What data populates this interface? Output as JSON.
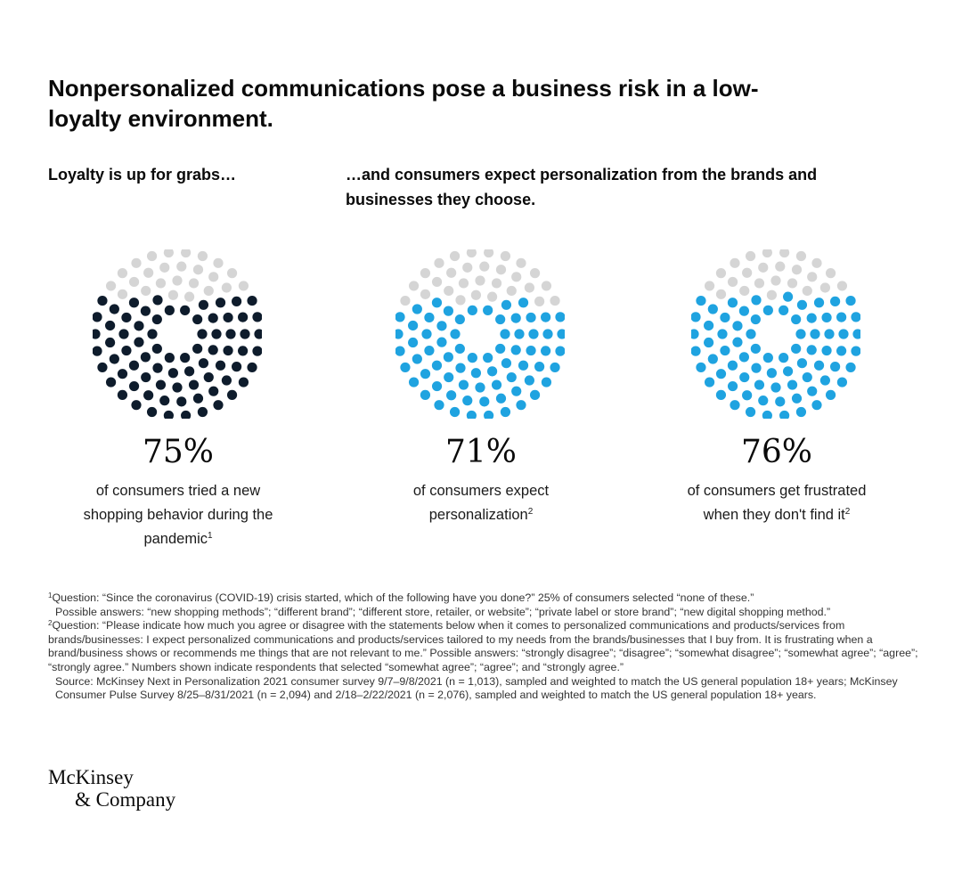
{
  "title": "Nonpersonalized communications pose a business risk in a low-loyalty environment.",
  "subheads": {
    "left": "Loyalty is up for grabs…",
    "right": "…and consumers expect personalization from the brands and businesses they choose."
  },
  "colors": {
    "inactive": "#d5d5d5",
    "navy": "#0e1c2c",
    "blue": "#1fa3e0"
  },
  "chart_data": {
    "type": "dot-proportion",
    "items": [
      {
        "value": 75,
        "label": "75%",
        "caption": "of consumers tried a new shopping behavior during the pandemic",
        "footnote": "1",
        "color": "#0e1c2c"
      },
      {
        "value": 71,
        "label": "71%",
        "caption": "of consumers expect personalization",
        "footnote": "2",
        "color": "#1fa3e0"
      },
      {
        "value": 76,
        "label": "76%",
        "caption": "of consumers get frustrated when they don't find it",
        "footnote": "2",
        "color": "#1fa3e0"
      }
    ]
  },
  "footnotes": {
    "fn1_num": "1",
    "fn1_text": "Question: “Since the coronavirus (COVID-19) crisis started, which of the following have you done?” 25% of consumers selected “none of these.”",
    "fn1_more": "Possible answers: “new shopping methods”; “different brand”; “different store, retailer, or website”; “private label or store brand”; “new digital shopping method.”",
    "fn2_num": "2",
    "fn2_text": "Question: “Please indicate how much you agree or disagree with the statements below when it comes to personalized communications and products/services from brands/businesses: I expect personalized communications and products/services tailored to my needs from the brands/businesses that I buy from. It is frustrating when a brand/business shows or recommends me things that are not relevant to me.” Possible answers: “strongly disagree”; “disagree”; “somewhat disagree”; “somewhat agree”; “agree”; “strongly agree.” Numbers shown indicate respondents that selected “somewhat agree”; “agree”; and “strongly agree.”",
    "source": "Source: McKinsey Next in Personalization 2021 consumer survey 9/7–9/8/2021 (n = 1,013), sampled and weighted to match the US general population 18+ years; McKinsey Consumer Pulse Survey 8/25–8/31/2021 (n = 2,094) and 2/18–2/22/2021 (n = 2,076), sampled and weighted to match the US general population 18+ years."
  },
  "logo": {
    "line1": "McKinsey",
    "line2": "& Company"
  }
}
